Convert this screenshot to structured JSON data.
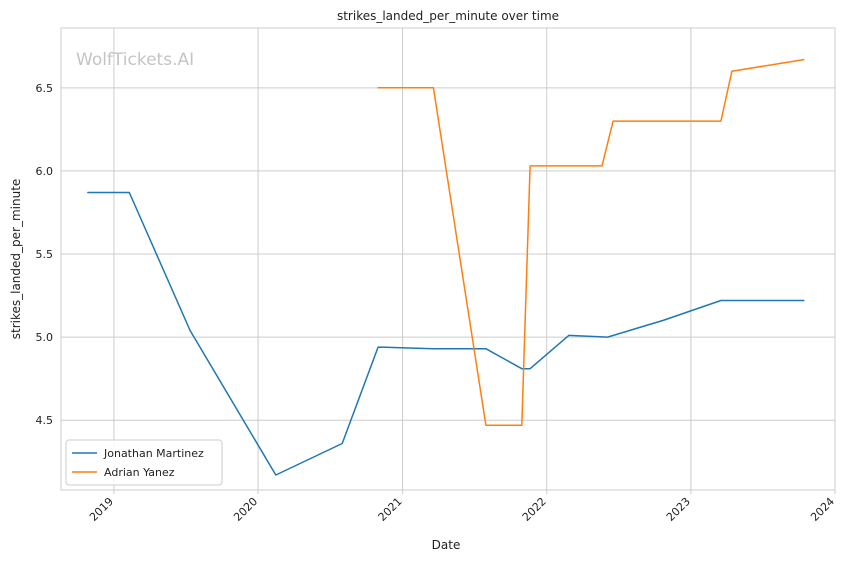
{
  "watermark": "WolfTickets.AI",
  "chart_data": {
    "type": "line",
    "title": "strikes_landed_per_minute over time",
    "xlabel": "Date",
    "ylabel": "strikes_landed_per_minute",
    "x_ticks": [
      "2019",
      "2020",
      "2021",
      "2022",
      "2023",
      "2024"
    ],
    "y_ticks": [
      "4.5",
      "5.0",
      "5.5",
      "6.0",
      "6.5"
    ],
    "xlim": [
      "2018-08-20",
      "2024-01-01"
    ],
    "ylim": [
      4.08,
      6.86
    ],
    "grid": true,
    "legend_position": "lower-left",
    "series": [
      {
        "name": "Jonathan Martinez",
        "color": "#1f77b4",
        "points": [
          [
            "2018-10-27",
            5.87
          ],
          [
            "2019-02-09",
            5.87
          ],
          [
            "2019-07-13",
            5.04
          ],
          [
            "2020-02-15",
            4.17
          ],
          [
            "2020-08-01",
            4.36
          ],
          [
            "2020-10-31",
            4.94
          ],
          [
            "2021-03-20",
            4.93
          ],
          [
            "2021-07-31",
            4.93
          ],
          [
            "2021-10-30",
            4.81
          ],
          [
            "2021-11-20",
            4.81
          ],
          [
            "2022-02-26",
            5.01
          ],
          [
            "2022-06-04",
            5.0
          ],
          [
            "2022-10-22",
            5.1
          ],
          [
            "2023-03-18",
            5.22
          ],
          [
            "2023-10-14",
            5.22
          ]
        ]
      },
      {
        "name": "Adrian Yanez",
        "color": "#ff7f0e",
        "points": [
          [
            "2020-10-31",
            6.5
          ],
          [
            "2021-03-20",
            6.5
          ],
          [
            "2021-07-31",
            4.47
          ],
          [
            "2021-10-30",
            4.47
          ],
          [
            "2021-11-20",
            6.03
          ],
          [
            "2022-05-21",
            6.03
          ],
          [
            "2022-06-18",
            6.3
          ],
          [
            "2023-03-18",
            6.3
          ],
          [
            "2023-04-15",
            6.6
          ],
          [
            "2023-10-14",
            6.67
          ]
        ]
      }
    ]
  }
}
